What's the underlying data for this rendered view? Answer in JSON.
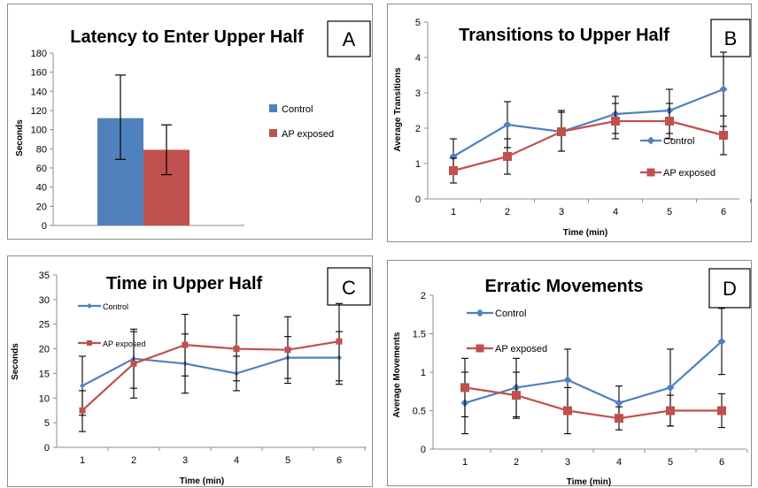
{
  "colors": {
    "control": "#4F81BD",
    "ap": "#C0504D"
  },
  "chart_data": [
    {
      "panel": "A",
      "type": "bar",
      "title": "Latency to Enter Upper Half",
      "ylabel": "Seconds",
      "xlabel": "",
      "ylim": [
        0,
        180
      ],
      "yticks": [
        "0",
        "20",
        "40",
        "60",
        "80",
        "100",
        "120",
        "140",
        "160",
        "180"
      ],
      "legend_position": "right",
      "series": [
        {
          "name": "Control",
          "value": 112,
          "err_low": 69,
          "err_high": 157
        },
        {
          "name": "AP exposed",
          "value": 79,
          "err_low": 53,
          "err_high": 105
        }
      ]
    },
    {
      "panel": "B",
      "type": "line",
      "title": "Transitions to Upper Half",
      "ylabel": "Average Transitions",
      "xlabel": "Time (min)",
      "x": [
        1,
        2,
        3,
        4,
        5,
        6
      ],
      "xticks": [
        "1",
        "2",
        "3",
        "4",
        "5",
        "6"
      ],
      "ylim": [
        0,
        5
      ],
      "yticks": [
        "0",
        "1",
        "2",
        "3",
        "4",
        "5"
      ],
      "legend_position": "lower-right",
      "series": [
        {
          "name": "Control",
          "values": [
            1.2,
            2.1,
            1.9,
            2.4,
            2.5,
            3.1
          ],
          "lo": [
            0.7,
            1.45,
            1.35,
            1.85,
            1.85,
            2.05
          ],
          "hi": [
            1.7,
            2.75,
            2.45,
            2.9,
            3.1,
            4.15
          ]
        },
        {
          "name": "AP exposed",
          "values": [
            0.8,
            1.2,
            1.9,
            2.2,
            2.2,
            1.8
          ],
          "lo": [
            0.45,
            0.7,
            1.35,
            1.7,
            1.7,
            1.25
          ],
          "hi": [
            1.15,
            1.7,
            2.5,
            2.7,
            2.7,
            2.35
          ]
        }
      ]
    },
    {
      "panel": "C",
      "type": "line",
      "title": "Time in Upper Half",
      "ylabel": "Seconds",
      "xlabel": "Time (min)",
      "x": [
        1,
        2,
        3,
        4,
        5,
        6
      ],
      "xticks": [
        "1",
        "2",
        "3",
        "4",
        "5",
        "6"
      ],
      "ylim": [
        0,
        35
      ],
      "yticks": [
        "0",
        "5",
        "10",
        "15",
        "20",
        "25",
        "30",
        "35"
      ],
      "legend_position": "top-left",
      "series": [
        {
          "name": "Control",
          "values": [
            12.5,
            18,
            17,
            15,
            18.2,
            18.2
          ],
          "lo": [
            6.5,
            12,
            11,
            11.5,
            13,
            12.8
          ],
          "hi": [
            18.5,
            24,
            23,
            18.5,
            22.5,
            23.5
          ]
        },
        {
          "name": "AP exposed",
          "values": [
            7.5,
            17,
            20.8,
            20,
            19.8,
            21.5
          ],
          "lo": [
            3.2,
            10,
            14.5,
            13.5,
            14,
            13.5
          ],
          "hi": [
            11.5,
            23.5,
            27,
            26.8,
            26.5,
            29.2
          ]
        }
      ]
    },
    {
      "panel": "D",
      "type": "line",
      "title": "Erratic Movements",
      "ylabel": "Average Movements",
      "xlabel": "Time (min)",
      "x": [
        1,
        2,
        3,
        4,
        5,
        6
      ],
      "xticks": [
        "1",
        "2",
        "3",
        "4",
        "5",
        "6"
      ],
      "ylim": [
        0,
        2
      ],
      "yticks": [
        "0",
        "0.5",
        "1",
        "1.5",
        "2"
      ],
      "legend_position": "top-left",
      "series": [
        {
          "name": "Control",
          "values": [
            0.6,
            0.8,
            0.9,
            0.6,
            0.8,
            1.4
          ],
          "lo": [
            0.2,
            0.42,
            0.5,
            0.38,
            0.3,
            0.97
          ],
          "hi": [
            1.0,
            1.18,
            1.3,
            0.82,
            1.3,
            1.83
          ]
        },
        {
          "name": "AP exposed",
          "values": [
            0.8,
            0.7,
            0.5,
            0.4,
            0.5,
            0.5
          ],
          "lo": [
            0.42,
            0.4,
            0.2,
            0.25,
            0.3,
            0.28
          ],
          "hi": [
            1.18,
            1.0,
            0.8,
            0.55,
            0.7,
            0.72
          ]
        }
      ]
    }
  ]
}
